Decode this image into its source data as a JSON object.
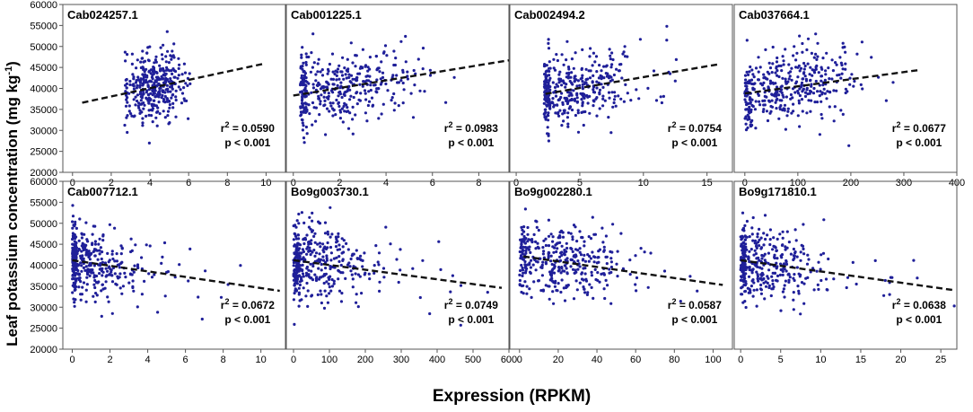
{
  "figure": {
    "ylabel_main": "Leaf potassium concentration (mg kg",
    "ylabel_exp": "-1",
    "ylabel_close": ")",
    "xlabel": "Expression (RPKM)"
  },
  "style": {
    "point_color": "#1f1f99",
    "trend_color": "#111111",
    "axis_color": "#555555"
  },
  "chart_data": [
    {
      "type": "scatter",
      "title": "Cab024257.1",
      "xlim": [
        -0.5,
        11
      ],
      "xticks": [
        0,
        2,
        4,
        6,
        8,
        10
      ],
      "ylim": [
        20000,
        60000
      ],
      "yticks": [
        20000,
        25000,
        30000,
        35000,
        40000,
        45000,
        50000,
        55000,
        60000
      ],
      "trend": [
        [
          0.5,
          36600
        ],
        [
          9.9,
          45900
        ]
      ],
      "r2": "0.0590",
      "p": "p < 0.001",
      "stat_anchor": "right",
      "dist": {
        "x": [
          2.7,
          6.2,
          4.2,
          0.7
        ],
        "ymean": 40500,
        "ysd": 4200,
        "seed": 11
      }
    },
    {
      "type": "scatter",
      "title": "Cab001225.1",
      "xlim": [
        -0.3,
        9.3
      ],
      "xticks": [
        0,
        2,
        4,
        6,
        8
      ],
      "ylim": [
        20000,
        60000
      ],
      "yticks": [
        20000,
        25000,
        30000,
        35000,
        40000,
        45000,
        50000,
        55000,
        60000
      ],
      "trend": [
        [
          0,
          38300
        ],
        [
          9.3,
          46700
        ]
      ],
      "r2": "0.0983",
      "p": "p < 0.001",
      "stat_anchor": "right",
      "dist": {
        "x": [
          0.3,
          7.2,
          1.8,
          1.5
        ],
        "ymean": 40500,
        "ysd": 4200,
        "seed": 23
      }
    },
    {
      "type": "scatter",
      "title": "Cab002494.2",
      "xlim": [
        -0.5,
        17
      ],
      "xticks": [
        0,
        5,
        10,
        15
      ],
      "ylim": [
        20000,
        60000
      ],
      "yticks": [
        20000,
        25000,
        30000,
        35000,
        40000,
        45000,
        50000,
        55000,
        60000
      ],
      "trend": [
        [
          2.3,
          38700
        ],
        [
          16,
          45800
        ]
      ],
      "r2": "0.0754",
      "p": "p < 0.001",
      "stat_anchor": "right",
      "dist": {
        "x": [
          2.2,
          13.5,
          4.5,
          2.5
        ],
        "ymean": 40200,
        "ysd": 4200,
        "seed": 37
      }
    },
    {
      "type": "scatter",
      "title": "Cab037664.1",
      "xlim": [
        -20,
        400
      ],
      "xticks": [
        0,
        100,
        200,
        300,
        400
      ],
      "ylim": [
        20000,
        60000
      ],
      "yticks": [
        20000,
        25000,
        30000,
        35000,
        40000,
        45000,
        50000,
        55000,
        60000
      ],
      "trend": [
        [
          0,
          38800
        ],
        [
          330,
          44400
        ]
      ],
      "r2": "0.0677",
      "p": "p < 0.001",
      "stat_anchor": "right",
      "dist": {
        "x": [
          0,
          340,
          80,
          70
        ],
        "ymean": 41000,
        "ysd": 4300,
        "seed": 41
      }
    },
    {
      "type": "scatter",
      "title": "Cab007712.1",
      "xlim": [
        -0.5,
        11.3
      ],
      "xticks": [
        0,
        2,
        4,
        6,
        8,
        10
      ],
      "ylim": [
        20000,
        60000
      ],
      "yticks": [
        20000,
        25000,
        30000,
        35000,
        40000,
        45000,
        50000,
        55000,
        60000
      ],
      "trend": [
        [
          0,
          41200
        ],
        [
          11,
          33900
        ]
      ],
      "r2": "0.0672",
      "p": "p < 0.001",
      "stat_anchor": "right",
      "dist": {
        "x": [
          0,
          10.6,
          0,
          1.6
        ],
        "ymean": 40300,
        "ysd": 4300,
        "seed": 53
      }
    },
    {
      "type": "scatter",
      "title": "Bo9g003730.1",
      "xlim": [
        -20,
        600
      ],
      "xticks": [
        0,
        100,
        200,
        300,
        400,
        500,
        600
      ],
      "ylim": [
        20000,
        60000
      ],
      "yticks": [
        20000,
        25000,
        30000,
        35000,
        40000,
        45000,
        50000,
        55000,
        60000
      ],
      "trend": [
        [
          0,
          41200
        ],
        [
          580,
          34600
        ]
      ],
      "r2": "0.0749",
      "p": "p < 0.001",
      "stat_anchor": "right",
      "dist": {
        "x": [
          0,
          580,
          0,
          110
        ],
        "ymean": 40300,
        "ysd": 4300,
        "seed": 67
      }
    },
    {
      "type": "scatter",
      "title": "Bo9g002280.1",
      "xlim": [
        -5,
        110
      ],
      "xticks": [
        0,
        20,
        40,
        60,
        80,
        100
      ],
      "ylim": [
        20000,
        60000
      ],
      "yticks": [
        20000,
        25000,
        30000,
        35000,
        40000,
        45000,
        50000,
        55000,
        60000
      ],
      "trend": [
        [
          2,
          42100
        ],
        [
          105,
          35300
        ]
      ],
      "r2": "0.0587",
      "p": "p < 0.001",
      "stat_anchor": "right",
      "dist": {
        "x": [
          0,
          105,
          20,
          17
        ],
        "ymean": 40300,
        "ysd": 4300,
        "seed": 79
      }
    },
    {
      "type": "scatter",
      "title": "Bo9g171810.1",
      "xlim": [
        -0.8,
        27
      ],
      "xticks": [
        0,
        5,
        10,
        15,
        20,
        25
      ],
      "ylim": [
        20000,
        60000
      ],
      "yticks": [
        20000,
        25000,
        30000,
        35000,
        40000,
        45000,
        50000,
        55000,
        60000
      ],
      "trend": [
        [
          0,
          41200
        ],
        [
          26.5,
          34100
        ]
      ],
      "r2": "0.0638",
      "p": "p < 0.001",
      "stat_anchor": "right",
      "dist": {
        "x": [
          0,
          27,
          0,
          4.5
        ],
        "ymean": 40300,
        "ysd": 4300,
        "seed": 97
      }
    }
  ]
}
